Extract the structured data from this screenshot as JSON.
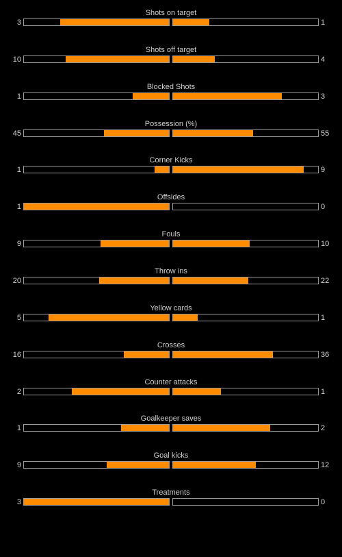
{
  "colors": {
    "background": "#000000",
    "fill": "#ff8c00",
    "bar_border": "#9a9a9a",
    "text": "#cfcfcf"
  },
  "stats": [
    {
      "label": "Shots on target",
      "home": "3",
      "away": "1",
      "home_fill": 0.75,
      "away_fill": 0.25
    },
    {
      "label": "Shots off target",
      "home": "10",
      "away": "4",
      "home_fill": 0.71,
      "away_fill": 0.29
    },
    {
      "label": "Blocked Shots",
      "home": "1",
      "away": "3",
      "home_fill": 0.25,
      "away_fill": 0.75
    },
    {
      "label": "Possession (%)",
      "home": "45",
      "away": "55",
      "home_fill": 0.45,
      "away_fill": 0.55
    },
    {
      "label": "Corner Kicks",
      "home": "1",
      "away": "9",
      "home_fill": 0.1,
      "away_fill": 0.9
    },
    {
      "label": "Offsides",
      "home": "1",
      "away": "0",
      "home_fill": 1.0,
      "away_fill": 0.0
    },
    {
      "label": "Fouls",
      "home": "9",
      "away": "10",
      "home_fill": 0.47,
      "away_fill": 0.53
    },
    {
      "label": "Throw ins",
      "home": "20",
      "away": "22",
      "home_fill": 0.48,
      "away_fill": 0.52
    },
    {
      "label": "Yellow cards",
      "home": "5",
      "away": "1",
      "home_fill": 0.83,
      "away_fill": 0.17
    },
    {
      "label": "Crosses",
      "home": "16",
      "away": "36",
      "home_fill": 0.31,
      "away_fill": 0.69
    },
    {
      "label": "Counter attacks",
      "home": "2",
      "away": "1",
      "home_fill": 0.67,
      "away_fill": 0.33
    },
    {
      "label": "Goalkeeper saves",
      "home": "1",
      "away": "2",
      "home_fill": 0.33,
      "away_fill": 0.67
    },
    {
      "label": "Goal kicks",
      "home": "9",
      "away": "12",
      "home_fill": 0.43,
      "away_fill": 0.57
    },
    {
      "label": "Treatments",
      "home": "3",
      "away": "0",
      "home_fill": 1.0,
      "away_fill": 0.0
    }
  ]
}
